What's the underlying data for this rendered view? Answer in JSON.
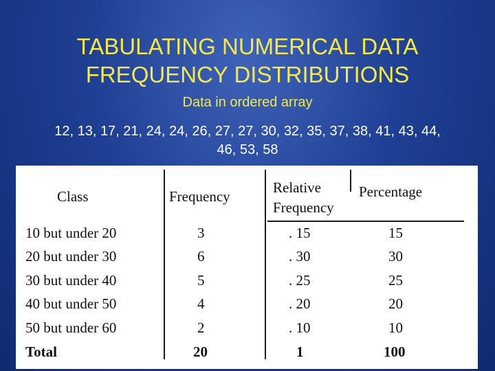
{
  "title": {
    "line1": "TABULATING NUMERICAL DATA",
    "line2": "FREQUENCY DISTRIBUTIONS"
  },
  "subtitle": "Data in ordered array",
  "data_array": {
    "line1": "12, 13, 17, 21, 24, 24, 26, 27, 27, 30, 32, 35, 37, 38, 41, 43, 44,",
    "line2": "46, 53, 58"
  },
  "table": {
    "headers": {
      "class": "Class",
      "frequency": "Frequency",
      "relative_line1": "Relative",
      "relative_line2": "Frequency",
      "percentage": "Percentage"
    },
    "rows": [
      {
        "class": "10 but under 20",
        "frequency": "3",
        "relative": ". 15",
        "percentage": "15"
      },
      {
        "class": "20 but under 30",
        "frequency": "6",
        "relative": ". 30",
        "percentage": "30"
      },
      {
        "class": "30 but under 40",
        "frequency": "5",
        "relative": ". 25",
        "percentage": "25"
      },
      {
        "class": "40 but under 50",
        "frequency": "4",
        "relative": ". 20",
        "percentage": "20"
      },
      {
        "class": "50 but under 60",
        "frequency": "2",
        "relative": ". 10",
        "percentage": "10"
      }
    ],
    "total": {
      "class": "Total",
      "frequency": "20",
      "relative": "1",
      "percentage": "100"
    }
  },
  "colors": {
    "title": "#f5e84a",
    "background": "#1f3f94",
    "table_background": "#ffffff"
  }
}
